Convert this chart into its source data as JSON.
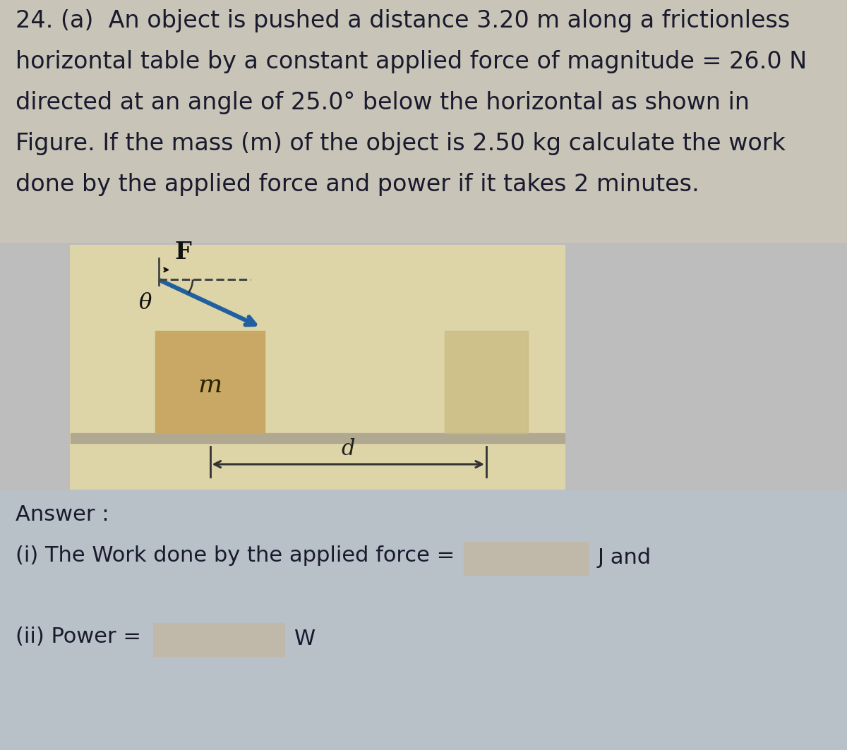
{
  "bg_color": "#bdbdbd",
  "text_bg_color": "#c8c5b8",
  "diagram_bg": "#ddd4a8",
  "block_color": "#c8a864",
  "block_right_color": "#c8b87a",
  "table_surface_color": "#b0a890",
  "answer_section_bg": "#b8c0c8",
  "answer_box_color": "#c0b8a8",
  "text_color": "#1a1a2e",
  "force_arrow_color": "#2060a0",
  "force_label_color": "#1a1a1a",
  "angle_label": "θ",
  "force_label": "F",
  "dist_label": "d",
  "mass_label": "m",
  "title_lines": [
    "24. (a)  An object is pushed a distance 3.20 m along a frictionless",
    "horizontal table by a constant applied force of magnitude = 26.0 N",
    "directed at an angle of 25.0° below the horizontal as shown in",
    "Figure. If the mass (m) of the object is 2.50 kg calculate the work",
    "done by the applied force and power if it takes 2 minutes."
  ],
  "answer_text": "Answer :",
  "ans1_text": "(i) The Work done by the applied force =",
  "ans1_suffix": "J and",
  "ans2_text": "(ii) Power =",
  "ans2_suffix": "W",
  "font_size_main": 24,
  "font_size_answer": 22,
  "font_size_diagram": 20
}
